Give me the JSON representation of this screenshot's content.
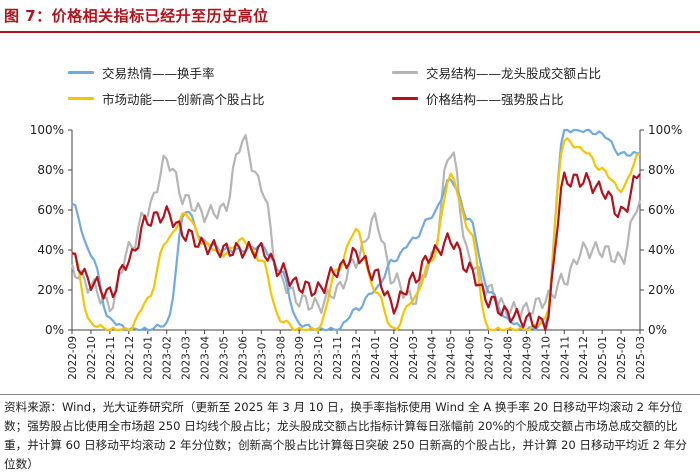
{
  "title": "图 7：价格相关指标已经升至历史高位",
  "legend": [
    {
      "label": "交易热情——换手率",
      "color": "#72a9e4"
    },
    {
      "label": "交易结构——龙头股成交额占比",
      "color": "#b5b5b5"
    },
    {
      "label": "市场动能——创新高个股占比",
      "color": "#f7c500"
    },
    {
      "label": "价格结构——强势股占比",
      "color": "#b3121c"
    }
  ],
  "source_text": "资料来源：Wind，光大证券研究所（更新至 2025 年 3 月 10 日，换手率指标使用 Wind 全 A 换手率 20 日移动平均滚动 2 年分位数；强势股占比使用全市场超 250 日均线个股占比；龙头股成交额占比指标计算每日涨幅前 20%的个股成交额占市场总成交额的比重，并计算 60 日移动平均滚动 2 年分位数；创新高个股占比计算每日突破 250 日新高的个股占比，并计算 20 日移动平均近 2 年分位数）",
  "chart_data": {
    "type": "line",
    "title": "价格相关指标已经升至历史高位",
    "xlabel": "",
    "ylabel": "",
    "ylim": [
      0,
      100
    ],
    "y_ticks": [
      "0%",
      "20%",
      "40%",
      "60%",
      "80%",
      "100%"
    ],
    "y2_ticks": [
      "0%",
      "20%",
      "40%",
      "60%",
      "80%",
      "100%"
    ],
    "categories": [
      "2022-09",
      "2022-10",
      "2022-11",
      "2022-12",
      "2023-01",
      "2023-02",
      "2023-03",
      "2023-04",
      "2023-05",
      "2023-06",
      "2023-07",
      "2023-08",
      "2023-09",
      "2023-10",
      "2023-11",
      "2023-12",
      "2024-01",
      "2024-02",
      "2024-03",
      "2024-04",
      "2024-05",
      "2024-06",
      "2024-07",
      "2024-08",
      "2024-09",
      "2024-10",
      "2024-11",
      "2024-12",
      "2025-01",
      "2025-02",
      "2025-03"
    ],
    "series": [
      {
        "name": "交易热情——换手率",
        "color": "#72a9e4",
        "values": [
          63,
          38,
          5,
          0,
          0,
          3,
          60,
          44,
          40,
          40,
          42,
          30,
          3,
          0,
          0,
          10,
          20,
          35,
          45,
          57,
          75,
          55,
          20,
          5,
          0,
          3,
          100,
          100,
          98,
          88,
          88
        ]
      },
      {
        "name": "交易结构——龙头股成交额占比",
        "color": "#b5b5b5",
        "values": [
          30,
          22,
          12,
          40,
          60,
          85,
          65,
          58,
          60,
          95,
          72,
          25,
          15,
          12,
          20,
          35,
          55,
          25,
          15,
          35,
          90,
          35,
          20,
          10,
          10,
          15,
          25,
          40,
          40,
          35,
          65
        ]
      },
      {
        "name": "市场动能——创新高个股占比",
        "color": "#f7c500",
        "values": [
          40,
          3,
          0,
          0,
          15,
          45,
          58,
          43,
          38,
          45,
          35,
          5,
          0,
          0,
          30,
          50,
          20,
          0,
          15,
          35,
          77,
          50,
          0,
          0,
          0,
          5,
          95,
          90,
          80,
          70,
          88
        ]
      },
      {
        "name": "价格结构——强势股占比",
        "color": "#b3121c",
        "values": [
          36,
          24,
          18,
          35,
          55,
          58,
          48,
          42,
          40,
          40,
          40,
          30,
          22,
          20,
          30,
          38,
          28,
          12,
          25,
          38,
          45,
          30,
          15,
          8,
          5,
          3,
          75,
          75,
          70,
          58,
          78
        ]
      }
    ]
  }
}
